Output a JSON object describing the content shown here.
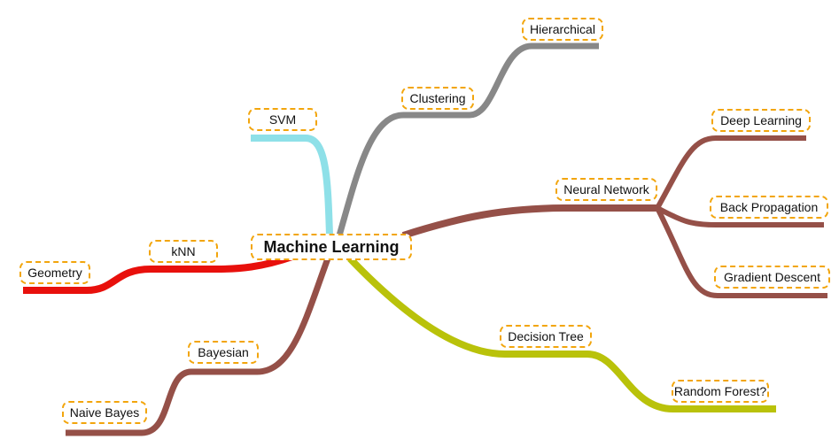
{
  "mindmap": {
    "root": "Machine Learning",
    "branches": [
      {
        "id": "svm",
        "label": "SVM",
        "color": "#8ee0e8",
        "children": []
      },
      {
        "id": "clustering",
        "label": "Clustering",
        "color": "#888888",
        "children": [
          {
            "id": "hierarchical",
            "label": "Hierarchical"
          }
        ]
      },
      {
        "id": "neural-network",
        "label": "Neural Network",
        "color": "#955048",
        "children": [
          {
            "id": "deep-learning",
            "label": "Deep Learning"
          },
          {
            "id": "back-propagation",
            "label": "Back Propagation"
          },
          {
            "id": "gradient-descent",
            "label": "Gradient Descent"
          }
        ]
      },
      {
        "id": "decision-tree",
        "label": "Decision Tree",
        "color": "#b9c20a",
        "children": [
          {
            "id": "random-forest",
            "label": "Random Forest?"
          }
        ]
      },
      {
        "id": "knn",
        "label": "kNN",
        "color": "#e8100c",
        "children": [
          {
            "id": "geometry",
            "label": "Geometry"
          }
        ]
      },
      {
        "id": "bayesian",
        "label": "Bayesian",
        "color": "#955048",
        "children": [
          {
            "id": "naive-bayes",
            "label": "Naive Bayes"
          }
        ]
      }
    ]
  }
}
